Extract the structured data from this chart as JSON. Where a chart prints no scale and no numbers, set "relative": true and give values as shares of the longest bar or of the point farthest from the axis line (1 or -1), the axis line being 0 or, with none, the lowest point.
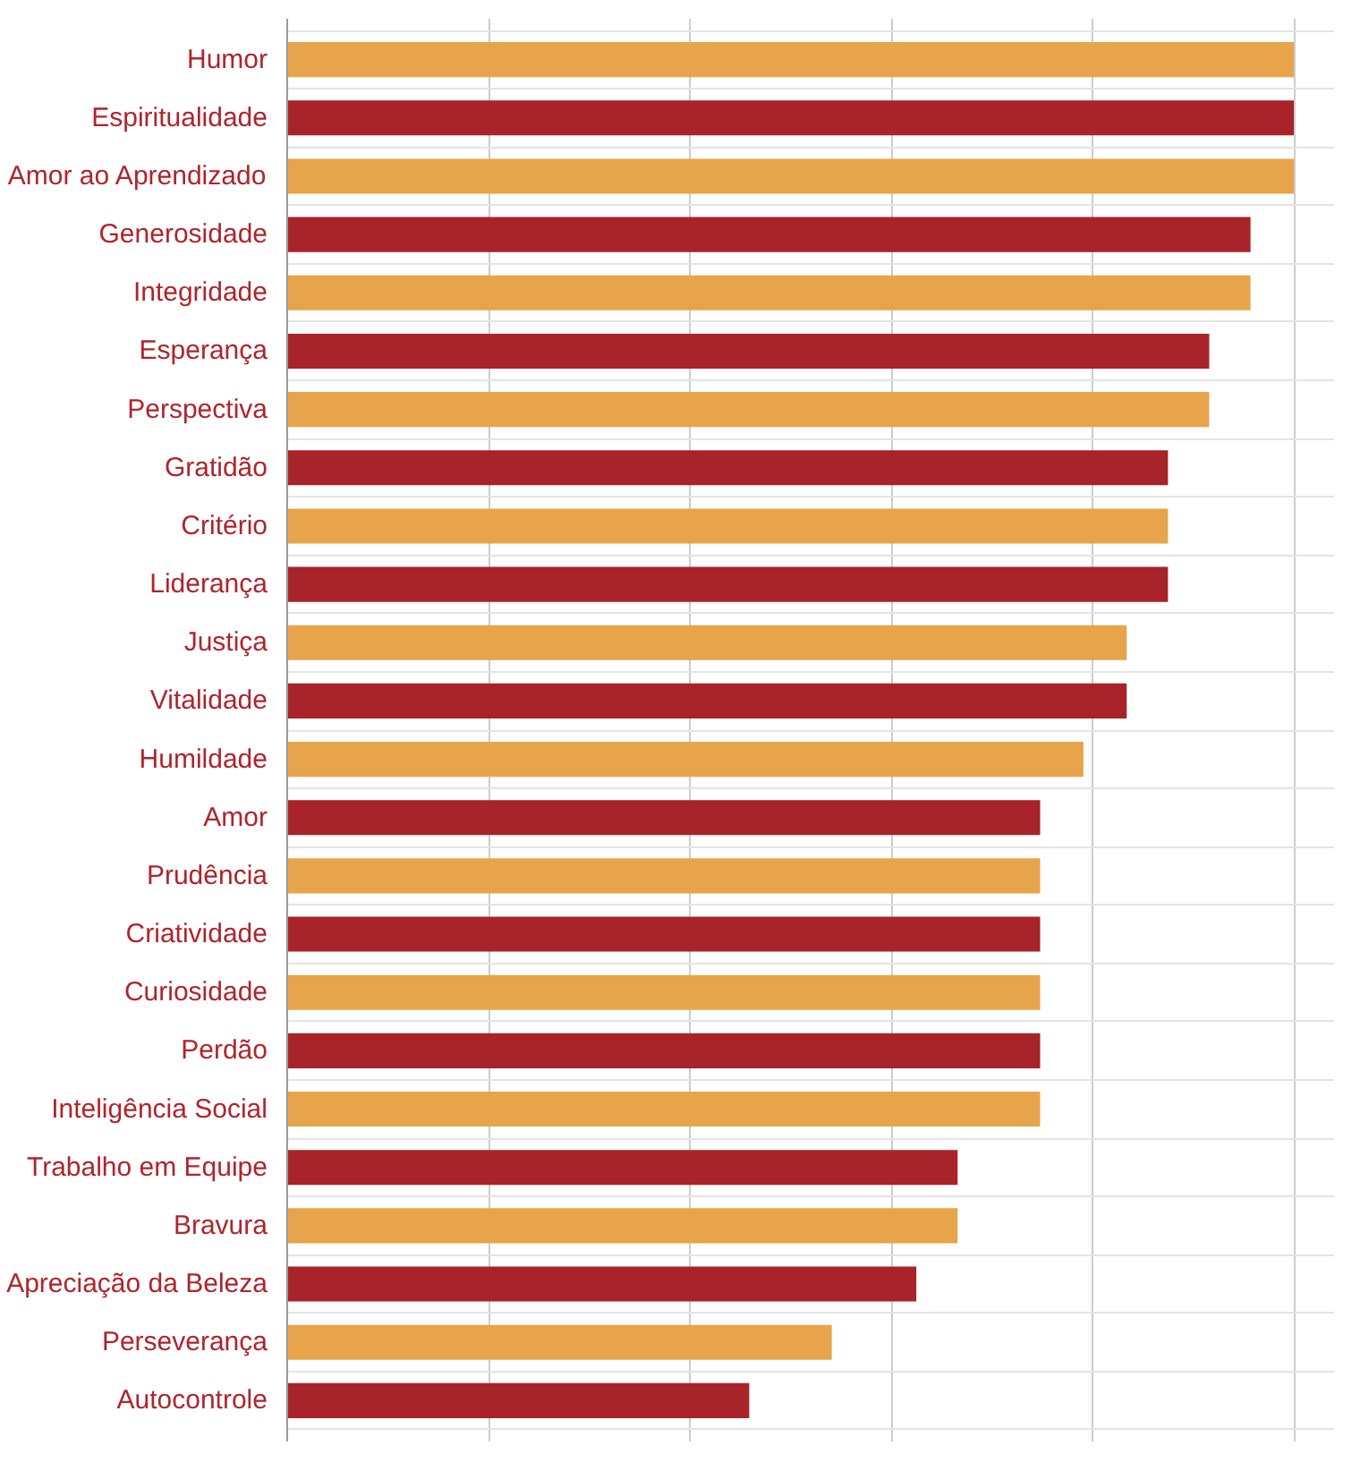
{
  "chart_data": {
    "type": "bar",
    "orientation": "horizontal",
    "relative": true,
    "grid": true,
    "categories": [
      "Humor",
      "Espiritualidade",
      "Amor ao Aprendizado",
      "Generosidade",
      "Integridade",
      "Esperança",
      "Perspectiva",
      "Gratidão",
      "Critério",
      "Liderança",
      "Justiça",
      "Vitalidade",
      "Humildade",
      "Amor",
      "Prudência",
      "Criatividade",
      "Curiosidade",
      "Perdão",
      "Inteligência Social",
      "Trabalho em Equipe",
      "Bravura",
      "Apreciação da Beleza",
      "Perseverança",
      "Autocontrole"
    ],
    "values": [
      1,
      1,
      1,
      0.957,
      0.957,
      0.916,
      0.916,
      0.875,
      0.875,
      0.875,
      0.834,
      0.834,
      0.791,
      0.748,
      0.748,
      0.748,
      0.748,
      0.748,
      0.748,
      0.666,
      0.666,
      0.625,
      0.541,
      0.459
    ],
    "colors": [
      "#e8a44a",
      "#a8232a",
      "#e8a44a",
      "#a8232a",
      "#e8a44a",
      "#a8232a",
      "#e8a44a",
      "#a8232a",
      "#e8a44a",
      "#a8232a",
      "#e8a44a",
      "#a8232a",
      "#e8a44a",
      "#a8232a",
      "#e8a44a",
      "#a8232a",
      "#e8a44a",
      "#a8232a",
      "#e8a44a",
      "#a8232a",
      "#e8a44a",
      "#a8232a",
      "#e8a44a",
      "#a8232a"
    ]
  }
}
